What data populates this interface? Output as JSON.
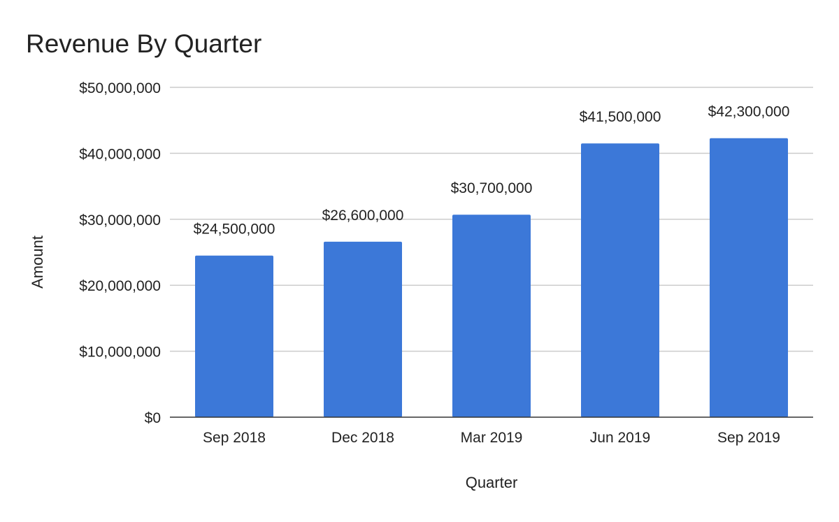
{
  "chart_data": {
    "type": "bar",
    "title": "Revenue By Quarter",
    "xlabel": "Quarter",
    "ylabel": "Amount",
    "categories": [
      "Sep 2018",
      "Dec 2018",
      "Mar 2019",
      "Jun 2019",
      "Sep 2019"
    ],
    "values": [
      24500000,
      26600000,
      30700000,
      41500000,
      42300000
    ],
    "data_labels": [
      "$24,500,000",
      "$26,600,000",
      "$30,700,000",
      "$41,500,000",
      "$42,300,000"
    ],
    "ylim": [
      0,
      50000000
    ],
    "yticks": [
      0,
      10000000,
      20000000,
      30000000,
      40000000,
      50000000
    ],
    "ytick_labels": [
      "$0",
      "$10,000,000",
      "$20,000,000",
      "$30,000,000",
      "$40,000,000",
      "$50,000,000"
    ],
    "grid": true,
    "legend": "none",
    "colors": {
      "bar": "#3c78d8",
      "grid": "#cccccc",
      "axis": "#333333",
      "text": "#222222"
    }
  }
}
